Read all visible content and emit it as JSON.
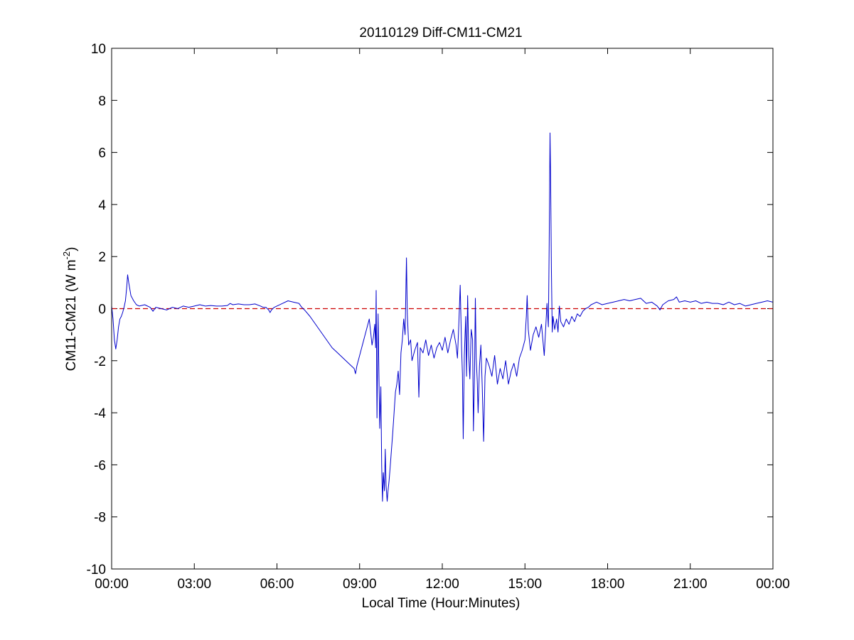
{
  "chart_data": {
    "type": "line",
    "title": "20110129 Diff-CM11-CM21",
    "xlabel": "Local Time (Hour:Minutes)",
    "ylabel": {
      "main": "CM11-CM21 (W m",
      "superscript": "-2",
      "suffix": ")"
    },
    "xlim": [
      0,
      24
    ],
    "ylim": [
      -10,
      10
    ],
    "x_ticks": [
      {
        "value": 0,
        "label": "00:00"
      },
      {
        "value": 3,
        "label": "03:00"
      },
      {
        "value": 6,
        "label": "06:00"
      },
      {
        "value": 9,
        "label": "09:00"
      },
      {
        "value": 12,
        "label": "12:00"
      },
      {
        "value": 15,
        "label": "15:00"
      },
      {
        "value": 18,
        "label": "18:00"
      },
      {
        "value": 21,
        "label": "21:00"
      },
      {
        "value": 24,
        "label": "00:00"
      }
    ],
    "y_ticks": [
      {
        "value": 10,
        "label": "10"
      },
      {
        "value": 8,
        "label": "8"
      },
      {
        "value": 6,
        "label": "6"
      },
      {
        "value": 4,
        "label": "4"
      },
      {
        "value": 2,
        "label": "2"
      },
      {
        "value": 0,
        "label": "0"
      },
      {
        "value": -2,
        "label": "-2"
      },
      {
        "value": -4,
        "label": "-4"
      },
      {
        "value": -6,
        "label": "-6"
      },
      {
        "value": -8,
        "label": "-8"
      },
      {
        "value": -10,
        "label": "-10"
      }
    ],
    "grid": false,
    "legend": "none",
    "reference_line": {
      "y": 0,
      "color": "#cc0000",
      "style": "dashed"
    },
    "series": [
      {
        "color": "#0000cc",
        "points": [
          [
            0.0,
            0.1
          ],
          [
            0.05,
            -0.4
          ],
          [
            0.1,
            -1.2
          ],
          [
            0.15,
            -1.55
          ],
          [
            0.2,
            -1.2
          ],
          [
            0.25,
            -0.7
          ],
          [
            0.3,
            -0.4
          ],
          [
            0.35,
            -0.3
          ],
          [
            0.4,
            -0.15
          ],
          [
            0.45,
            0.05
          ],
          [
            0.5,
            0.3
          ],
          [
            0.55,
            0.85
          ],
          [
            0.58,
            1.3
          ],
          [
            0.62,
            1.0
          ],
          [
            0.7,
            0.5
          ],
          [
            0.8,
            0.3
          ],
          [
            0.9,
            0.15
          ],
          [
            1.0,
            0.1
          ],
          [
            1.2,
            0.15
          ],
          [
            1.4,
            0.05
          ],
          [
            1.5,
            -0.1
          ],
          [
            1.6,
            0.05
          ],
          [
            1.8,
            0.0
          ],
          [
            2.0,
            -0.05
          ],
          [
            2.2,
            0.05
          ],
          [
            2.4,
            0.0
          ],
          [
            2.6,
            0.1
          ],
          [
            2.8,
            0.05
          ],
          [
            3.0,
            0.1
          ],
          [
            3.2,
            0.15
          ],
          [
            3.4,
            0.1
          ],
          [
            3.6,
            0.12
          ],
          [
            3.8,
            0.1
          ],
          [
            4.0,
            0.1
          ],
          [
            4.2,
            0.12
          ],
          [
            4.3,
            0.2
          ],
          [
            4.4,
            0.15
          ],
          [
            4.6,
            0.18
          ],
          [
            4.8,
            0.15
          ],
          [
            5.0,
            0.15
          ],
          [
            5.2,
            0.18
          ],
          [
            5.4,
            0.1
          ],
          [
            5.5,
            0.05
          ],
          [
            5.6,
            0.05
          ],
          [
            5.7,
            -0.05
          ],
          [
            5.75,
            -0.15
          ],
          [
            5.8,
            -0.05
          ],
          [
            5.9,
            0.05
          ],
          [
            6.0,
            0.1
          ],
          [
            6.2,
            0.2
          ],
          [
            6.4,
            0.3
          ],
          [
            6.6,
            0.25
          ],
          [
            6.8,
            0.2
          ],
          [
            6.9,
            0.05
          ],
          [
            7.0,
            -0.05
          ],
          [
            7.2,
            -0.3
          ],
          [
            7.4,
            -0.6
          ],
          [
            7.6,
            -0.9
          ],
          [
            7.8,
            -1.2
          ],
          [
            8.0,
            -1.5
          ],
          [
            8.2,
            -1.7
          ],
          [
            8.4,
            -1.9
          ],
          [
            8.6,
            -2.1
          ],
          [
            8.8,
            -2.3
          ],
          [
            8.85,
            -2.5
          ],
          [
            8.9,
            -2.2
          ],
          [
            9.0,
            -1.8
          ],
          [
            9.1,
            -1.4
          ],
          [
            9.2,
            -1.0
          ],
          [
            9.3,
            -0.6
          ],
          [
            9.35,
            -0.4
          ],
          [
            9.4,
            -0.9
          ],
          [
            9.45,
            -1.4
          ],
          [
            9.5,
            -1.1
          ],
          [
            9.55,
            -0.6
          ],
          [
            9.58,
            -1.5
          ],
          [
            9.6,
            0.7
          ],
          [
            9.63,
            -4.2
          ],
          [
            9.67,
            -0.2
          ],
          [
            9.7,
            -2.5
          ],
          [
            9.73,
            -4.6
          ],
          [
            9.77,
            -3.0
          ],
          [
            9.8,
            -6.0
          ],
          [
            9.83,
            -7.4
          ],
          [
            9.86,
            -6.3
          ],
          [
            9.9,
            -7.0
          ],
          [
            9.93,
            -5.4
          ],
          [
            9.96,
            -6.8
          ],
          [
            10.0,
            -7.4
          ],
          [
            10.03,
            -7.0
          ],
          [
            10.07,
            -6.6
          ],
          [
            10.1,
            -6.2
          ],
          [
            10.15,
            -5.5
          ],
          [
            10.2,
            -4.8
          ],
          [
            10.25,
            -4.0
          ],
          [
            10.3,
            -3.2
          ],
          [
            10.35,
            -2.9
          ],
          [
            10.4,
            -2.4
          ],
          [
            10.45,
            -3.3
          ],
          [
            10.5,
            -1.7
          ],
          [
            10.55,
            -1.2
          ],
          [
            10.6,
            -0.4
          ],
          [
            10.65,
            -1.0
          ],
          [
            10.7,
            1.95
          ],
          [
            10.73,
            -0.2
          ],
          [
            10.78,
            -1.4
          ],
          [
            10.85,
            -1.2
          ],
          [
            10.9,
            -2.0
          ],
          [
            11.0,
            -1.6
          ],
          [
            11.1,
            -1.3
          ],
          [
            11.15,
            -3.4
          ],
          [
            11.2,
            -1.5
          ],
          [
            11.3,
            -1.7
          ],
          [
            11.4,
            -1.2
          ],
          [
            11.5,
            -1.8
          ],
          [
            11.6,
            -1.4
          ],
          [
            11.7,
            -1.9
          ],
          [
            11.8,
            -1.5
          ],
          [
            11.9,
            -1.3
          ],
          [
            12.0,
            -1.6
          ],
          [
            12.1,
            -1.1
          ],
          [
            12.2,
            -1.7
          ],
          [
            12.3,
            -1.2
          ],
          [
            12.4,
            -0.8
          ],
          [
            12.5,
            -1.4
          ],
          [
            12.55,
            -1.9
          ],
          [
            12.6,
            -0.6
          ],
          [
            12.65,
            0.9
          ],
          [
            12.7,
            -1.5
          ],
          [
            12.73,
            -2.5
          ],
          [
            12.76,
            -5.0
          ],
          [
            12.8,
            -1.8
          ],
          [
            12.85,
            -0.3
          ],
          [
            12.88,
            -2.6
          ],
          [
            12.92,
            0.5
          ],
          [
            12.96,
            -1.8
          ],
          [
            13.0,
            -2.7
          ],
          [
            13.05,
            -0.8
          ],
          [
            13.1,
            -1.2
          ],
          [
            13.13,
            -4.7
          ],
          [
            13.17,
            -2.5
          ],
          [
            13.2,
            0.4
          ],
          [
            13.23,
            -1.9
          ],
          [
            13.27,
            -2.8
          ],
          [
            13.3,
            -4.0
          ],
          [
            13.35,
            -2.2
          ],
          [
            13.4,
            -1.4
          ],
          [
            13.45,
            -3.0
          ],
          [
            13.5,
            -5.1
          ],
          [
            13.55,
            -2.6
          ],
          [
            13.6,
            -1.9
          ],
          [
            13.7,
            -2.2
          ],
          [
            13.8,
            -2.6
          ],
          [
            13.9,
            -1.8
          ],
          [
            14.0,
            -2.9
          ],
          [
            14.1,
            -2.3
          ],
          [
            14.2,
            -2.7
          ],
          [
            14.3,
            -2.0
          ],
          [
            14.4,
            -2.9
          ],
          [
            14.5,
            -2.4
          ],
          [
            14.6,
            -2.1
          ],
          [
            14.7,
            -2.6
          ],
          [
            14.8,
            -1.9
          ],
          [
            14.9,
            -1.6
          ],
          [
            15.0,
            -1.2
          ],
          [
            15.05,
            -0.3
          ],
          [
            15.08,
            0.5
          ],
          [
            15.12,
            -0.8
          ],
          [
            15.2,
            -1.6
          ],
          [
            15.3,
            -1.0
          ],
          [
            15.4,
            -0.7
          ],
          [
            15.5,
            -1.1
          ],
          [
            15.6,
            -0.6
          ],
          [
            15.7,
            -1.8
          ],
          [
            15.8,
            0.2
          ],
          [
            15.85,
            -0.7
          ],
          [
            15.88,
            2.5
          ],
          [
            15.91,
            6.75
          ],
          [
            15.93,
            5.2
          ],
          [
            15.96,
            1.5
          ],
          [
            15.99,
            -0.9
          ],
          [
            16.02,
            -0.3
          ],
          [
            16.08,
            -0.8
          ],
          [
            16.15,
            -0.4
          ],
          [
            16.2,
            -0.9
          ],
          [
            16.25,
            0.1
          ],
          [
            16.3,
            -0.5
          ],
          [
            16.4,
            -0.7
          ],
          [
            16.5,
            -0.4
          ],
          [
            16.6,
            -0.6
          ],
          [
            16.7,
            -0.3
          ],
          [
            16.8,
            -0.5
          ],
          [
            16.9,
            -0.2
          ],
          [
            17.0,
            -0.3
          ],
          [
            17.1,
            -0.1
          ],
          [
            17.2,
            0.0
          ],
          [
            17.3,
            0.05
          ],
          [
            17.4,
            0.15
          ],
          [
            17.5,
            0.2
          ],
          [
            17.6,
            0.25
          ],
          [
            17.7,
            0.2
          ],
          [
            17.8,
            0.15
          ],
          [
            18.0,
            0.2
          ],
          [
            18.2,
            0.25
          ],
          [
            18.4,
            0.3
          ],
          [
            18.6,
            0.35
          ],
          [
            18.8,
            0.3
          ],
          [
            19.0,
            0.35
          ],
          [
            19.2,
            0.4
          ],
          [
            19.4,
            0.2
          ],
          [
            19.6,
            0.25
          ],
          [
            19.8,
            0.1
          ],
          [
            19.9,
            -0.05
          ],
          [
            20.0,
            0.15
          ],
          [
            20.2,
            0.3
          ],
          [
            20.4,
            0.35
          ],
          [
            20.5,
            0.45
          ],
          [
            20.6,
            0.25
          ],
          [
            20.8,
            0.3
          ],
          [
            21.0,
            0.25
          ],
          [
            21.2,
            0.3
          ],
          [
            21.4,
            0.2
          ],
          [
            21.6,
            0.25
          ],
          [
            21.8,
            0.2
          ],
          [
            22.0,
            0.2
          ],
          [
            22.2,
            0.15
          ],
          [
            22.4,
            0.25
          ],
          [
            22.6,
            0.15
          ],
          [
            22.8,
            0.2
          ],
          [
            23.0,
            0.1
          ],
          [
            23.2,
            0.15
          ],
          [
            23.4,
            0.2
          ],
          [
            23.6,
            0.25
          ],
          [
            23.8,
            0.3
          ],
          [
            24.0,
            0.25
          ]
        ]
      }
    ]
  }
}
